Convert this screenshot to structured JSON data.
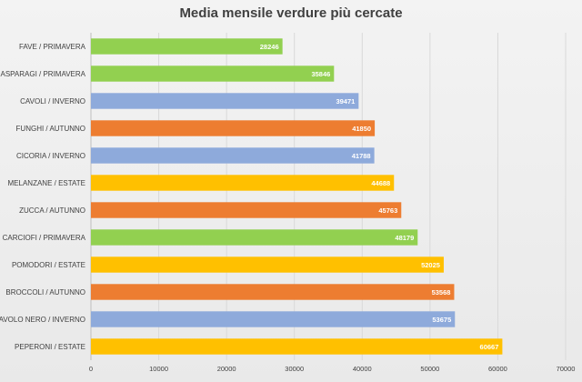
{
  "chart_data": {
    "type": "bar",
    "orientation": "horizontal",
    "title": "Media mensile verdure più cercate",
    "xlabel": "",
    "ylabel": "",
    "xlim": [
      0,
      70000
    ],
    "xticks": [
      "0",
      "10000",
      "20000",
      "30000",
      "40000",
      "50000",
      "60000",
      "70000"
    ],
    "grid": "vertical",
    "categories": [
      "FAVE / PRIMAVERA",
      "ASPARAGI / PRIMAVERA",
      "CAVOLI / INVERNO",
      "FUNGHI / AUTUNNO",
      "CICORIA / INVERNO",
      "MELANZANE / ESTATE",
      "ZUCCA / AUTUNNO",
      "CARCIOFI / PRIMAVERA",
      "POMODORI / ESTATE",
      "BROCCOLI / AUTUNNO",
      "CAVOLO NERO / INVERNO",
      "PEPERONI / ESTATE"
    ],
    "values": [
      28246,
      35846,
      39471,
      41850,
      41788,
      44688,
      45763,
      48179,
      52025,
      53568,
      53675,
      60667
    ],
    "value_labels": [
      "28246",
      "35846",
      "39471",
      "41850",
      "41788",
      "44688",
      "45763",
      "48179",
      "52025",
      "53568",
      "53675",
      "60667"
    ],
    "seasons": [
      "PRIMAVERA",
      "PRIMAVERA",
      "INVERNO",
      "AUTUNNO",
      "INVERNO",
      "ESTATE",
      "AUTUNNO",
      "PRIMAVERA",
      "ESTATE",
      "AUTUNNO",
      "INVERNO",
      "ESTATE"
    ],
    "season_colors": {
      "PRIMAVERA": "#92d050",
      "INVERNO": "#8eaadb",
      "AUTUNNO": "#ed7d31",
      "ESTATE": "#ffc000"
    },
    "gridline_color": "#d9d9d9",
    "axis_color": "#bfbfbf"
  }
}
